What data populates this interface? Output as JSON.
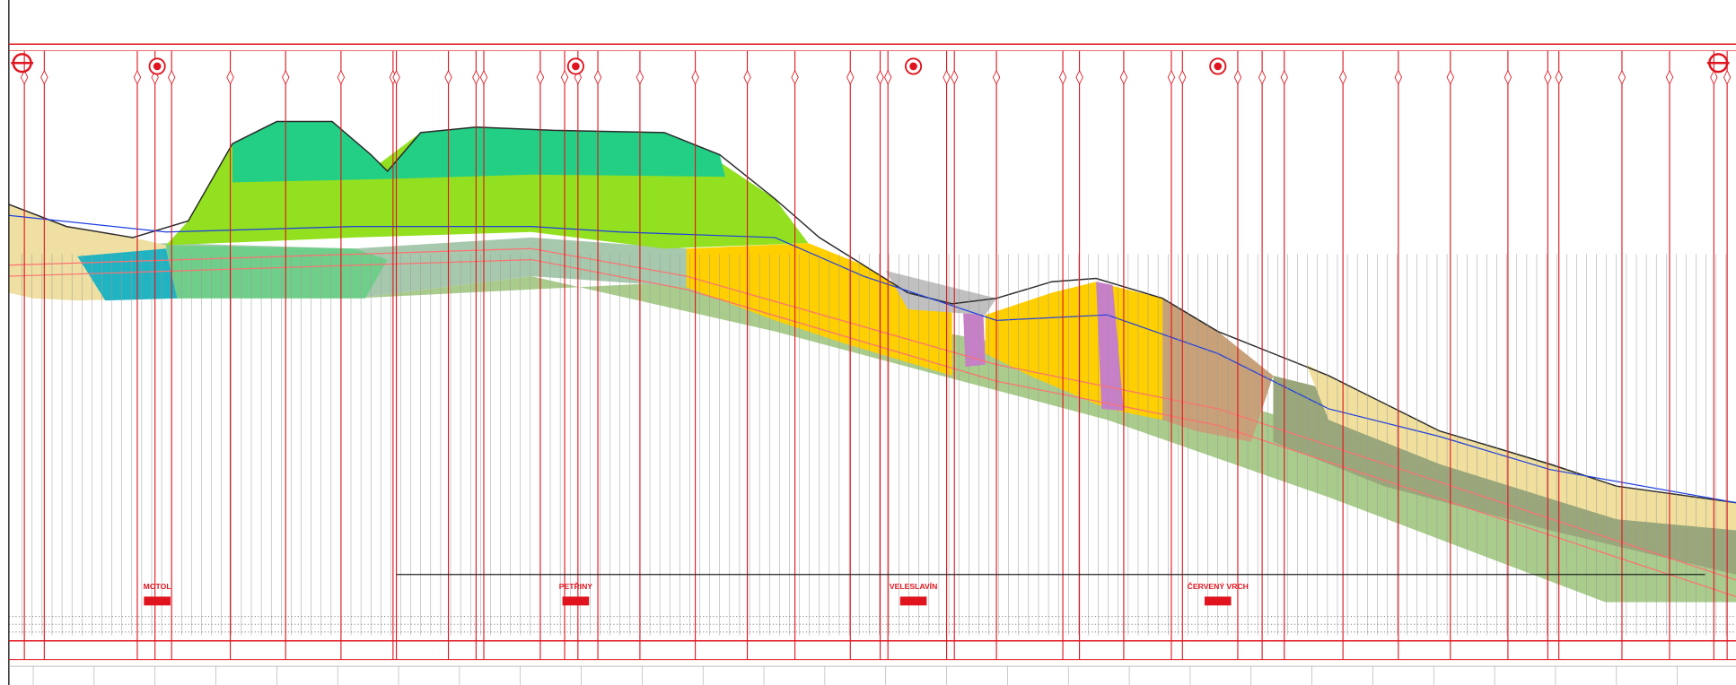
{
  "stations": [
    {
      "label": "MOTOL"
    },
    {
      "label": "PETŘINY"
    },
    {
      "label": "VELESLAVÍN"
    },
    {
      "label": "ČERVENÝ VRCH"
    }
  ]
}
